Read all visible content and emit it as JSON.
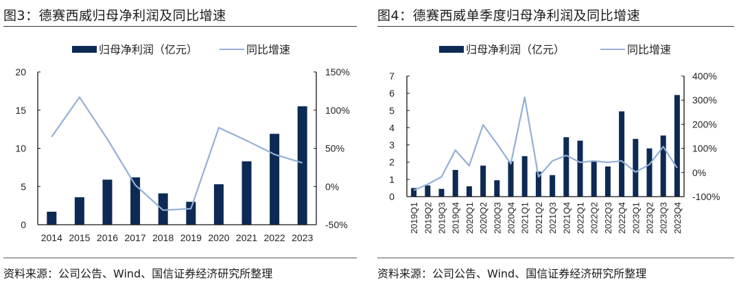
{
  "colors": {
    "bar": "#0d2a55",
    "line": "#93afd6",
    "axis": "#111111"
  },
  "left": {
    "title": "图3：德赛西威归母净利润及同比增速",
    "source": "资料来源：公司公告、Wind、国信证券经济研究所整理"
  },
  "right": {
    "title": "图4：德赛西威单季度归母净利润及同比增速",
    "source": "资料来源：公司公告、Wind、国信证券经济研究所整理"
  },
  "chart_data": [
    {
      "type": "bar",
      "title": "德赛西威归母净利润及同比增速",
      "categories": [
        "2014",
        "2015",
        "2016",
        "2017",
        "2018",
        "2019",
        "2020",
        "2021",
        "2022",
        "2023"
      ],
      "series": [
        {
          "name": "归母净利润（亿元）",
          "type": "bar",
          "axis": "left",
          "values": [
            1.7,
            3.6,
            5.9,
            6.2,
            4.1,
            3.0,
            5.3,
            8.3,
            11.9,
            15.5
          ]
        },
        {
          "name": "同比增速",
          "type": "line",
          "axis": "right",
          "values": [
            65,
            117,
            62,
            2,
            -31,
            -29,
            77,
            60,
            42,
            31
          ]
        }
      ],
      "ylim": [
        0,
        20
      ],
      "yticks": [
        "0",
        "5",
        "10",
        "15",
        "20"
      ],
      "ytick_values": [
        0,
        5,
        10,
        15,
        20
      ],
      "y2lim": [
        -50,
        150
      ],
      "y2ticks": [
        "-50%",
        "0%",
        "50%",
        "100%",
        "150%"
      ],
      "y2tick_values": [
        -50,
        0,
        50,
        100,
        150
      ],
      "legend": "top-center",
      "grid": false
    },
    {
      "type": "bar",
      "title": "德赛西威单季度归母净利润及同比增速",
      "categories": [
        "2019Q1",
        "2019Q2",
        "2019Q3",
        "2019Q4",
        "2020Q1",
        "2020Q2",
        "2020Q3",
        "2020Q4",
        "2021Q1",
        "2021Q2",
        "2021Q3",
        "2021Q4",
        "2022Q1",
        "2022Q2",
        "2022Q3",
        "2022Q4",
        "2023Q1",
        "2023Q2",
        "2023Q3",
        "2023Q4"
      ],
      "series": [
        {
          "name": "归母净利润（亿元）",
          "type": "bar",
          "axis": "left",
          "values": [
            0.5,
            0.65,
            0.45,
            1.55,
            0.6,
            1.8,
            0.95,
            2.05,
            2.35,
            1.45,
            1.25,
            3.45,
            3.25,
            2.05,
            1.75,
            4.95,
            3.35,
            2.8,
            3.55,
            5.9
          ]
        },
        {
          "name": "同比增速",
          "type": "line",
          "axis": "right",
          "values": [
            -74,
            -49,
            -18,
            93,
            28,
            198,
            119,
            36,
            312,
            -18,
            48,
            71,
            42,
            48,
            42,
            48,
            2,
            33,
            107,
            19
          ]
        }
      ],
      "ylim": [
        0,
        7
      ],
      "yticks": [
        "0",
        "1",
        "2",
        "3",
        "4",
        "5",
        "6",
        "7"
      ],
      "ytick_values": [
        0,
        1,
        2,
        3,
        4,
        5,
        6,
        7
      ],
      "y2lim": [
        -100,
        400
      ],
      "y2ticks": [
        "-100%",
        "0%",
        "100%",
        "200%",
        "300%",
        "400%"
      ],
      "y2tick_values": [
        -100,
        0,
        100,
        200,
        300,
        400
      ],
      "legend": "top-center",
      "grid": false
    }
  ]
}
